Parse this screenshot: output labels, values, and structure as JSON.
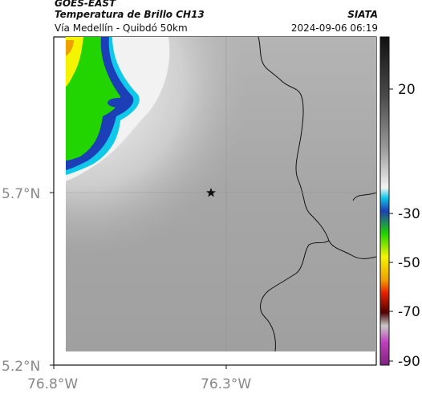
{
  "header": {
    "satellite": "GOES-EAST",
    "product": "Temperatura de Brillo CH13",
    "region": "Vía Medellín - Quibdó 50km",
    "agency": "SIATA",
    "datetime": "2024-09-06 06:19"
  },
  "axes": {
    "lat_labels": [
      "5.7°N",
      "5.2°N"
    ],
    "lon_labels": [
      "76.8°W",
      "76.3°W"
    ]
  },
  "colorbar": {
    "tick_labels": [
      "20",
      "-30",
      "-50",
      "-70",
      "-90"
    ],
    "colors": {
      "cold_yellow": "#f4f400",
      "green": "#22d400",
      "blue": "#1c3fb8",
      "cyan": "#10c8e8",
      "red": "#e82000",
      "magenta": "#c040c0",
      "gray": "#9a9a9a"
    }
  },
  "map": {
    "marker_icon": "star-icon",
    "background_gray": "#a8a8a8"
  }
}
